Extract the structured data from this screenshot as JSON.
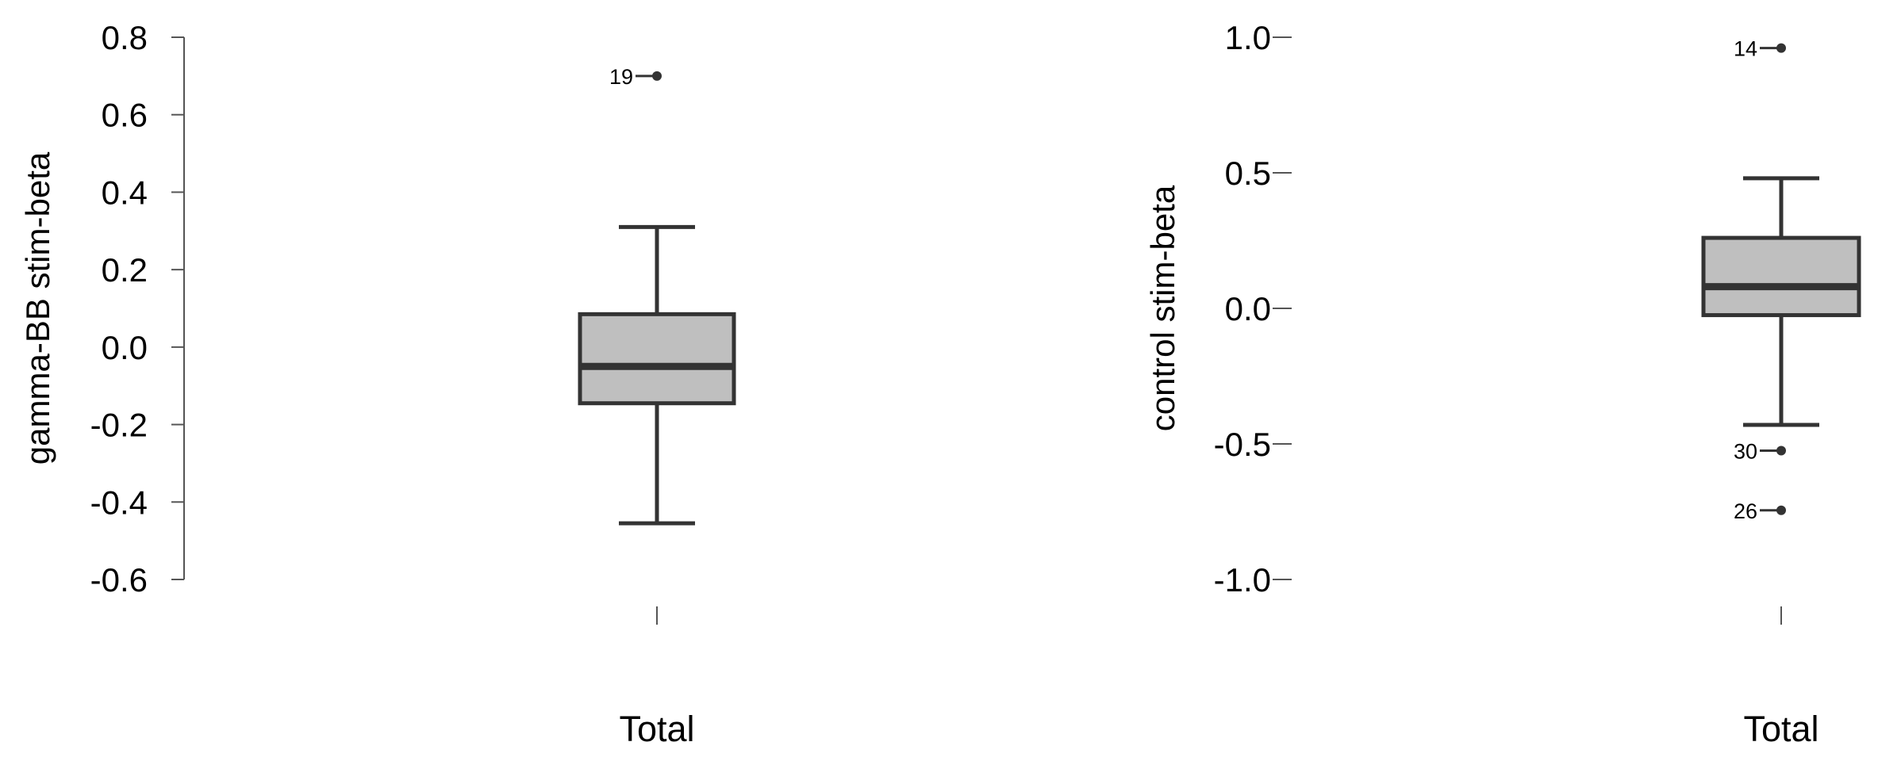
{
  "colors": {
    "box_fill": "#bfbfbf",
    "stroke": "#333333",
    "axis": "#555555",
    "text": "#000000"
  },
  "chart_data": [
    {
      "type": "boxplot",
      "ylabel": "gamma-BB stim-beta",
      "ylim": [
        -0.6,
        0.8
      ],
      "yticks": [
        -0.6,
        -0.4,
        -0.2,
        0.0,
        0.2,
        0.4,
        0.6,
        0.8
      ],
      "ytick_labels": [
        "-0.6",
        "-0.4",
        "-0.2",
        "0.0",
        "0.2",
        "0.4",
        "0.6",
        "0.8"
      ],
      "categories": [
        "Total"
      ],
      "boxes": [
        {
          "category": "Total",
          "whisker_low": -0.455,
          "q1": -0.145,
          "median": -0.05,
          "q3": 0.085,
          "whisker_high": 0.31,
          "outliers": [
            {
              "label": "19",
              "value": 0.7
            }
          ]
        }
      ]
    },
    {
      "type": "boxplot",
      "ylabel": "control stim-beta",
      "ylim": [
        -1.0,
        1.0
      ],
      "yticks": [
        -1.0,
        -0.5,
        0.0,
        0.5,
        1.0
      ],
      "ytick_labels": [
        "-1.0",
        "-0.5",
        "0.0",
        "0.5",
        "1.0"
      ],
      "categories": [
        "Total"
      ],
      "boxes": [
        {
          "category": "Total",
          "whisker_low": -0.43,
          "q1": -0.025,
          "median": 0.08,
          "q3": 0.26,
          "whisker_high": 0.48,
          "outliers": [
            {
              "label": "14",
              "value": 0.96
            },
            {
              "label": "30",
              "value": -0.525
            },
            {
              "label": "26",
              "value": -0.745
            }
          ]
        }
      ]
    }
  ]
}
